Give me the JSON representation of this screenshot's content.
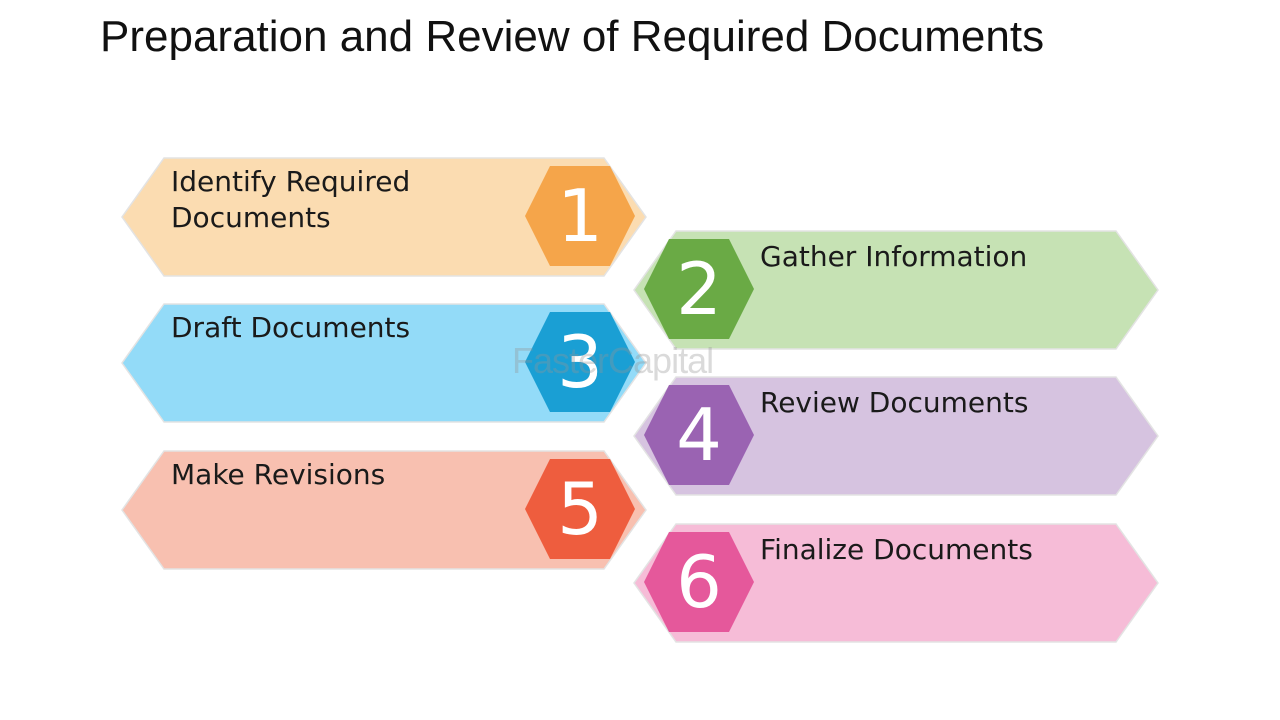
{
  "title": "Preparation and Review of Required Documents",
  "watermark": "FasterCapital",
  "steps": [
    {
      "number": "1",
      "label_lines": [
        "Identify Required",
        "Documents"
      ],
      "fill": "#fbdcb1",
      "badge": "#f5a54a"
    },
    {
      "number": "2",
      "label_lines": [
        "Gather Information"
      ],
      "fill": "#c6e2b4",
      "badge": "#6aaa45"
    },
    {
      "number": "3",
      "label_lines": [
        "Draft Documents"
      ],
      "fill": "#93dbf8",
      "badge": "#1a9fd4"
    },
    {
      "number": "4",
      "label_lines": [
        "Review Documents"
      ],
      "fill": "#d6c3e0",
      "badge": "#9a63b2"
    },
    {
      "number": "5",
      "label_lines": [
        "Make Revisions"
      ],
      "fill": "#f8c0b0",
      "badge": "#ee5d3e"
    },
    {
      "number": "6",
      "label_lines": [
        "Finalize Documents"
      ],
      "fill": "#f6bcd7",
      "badge": "#e5589b"
    }
  ]
}
